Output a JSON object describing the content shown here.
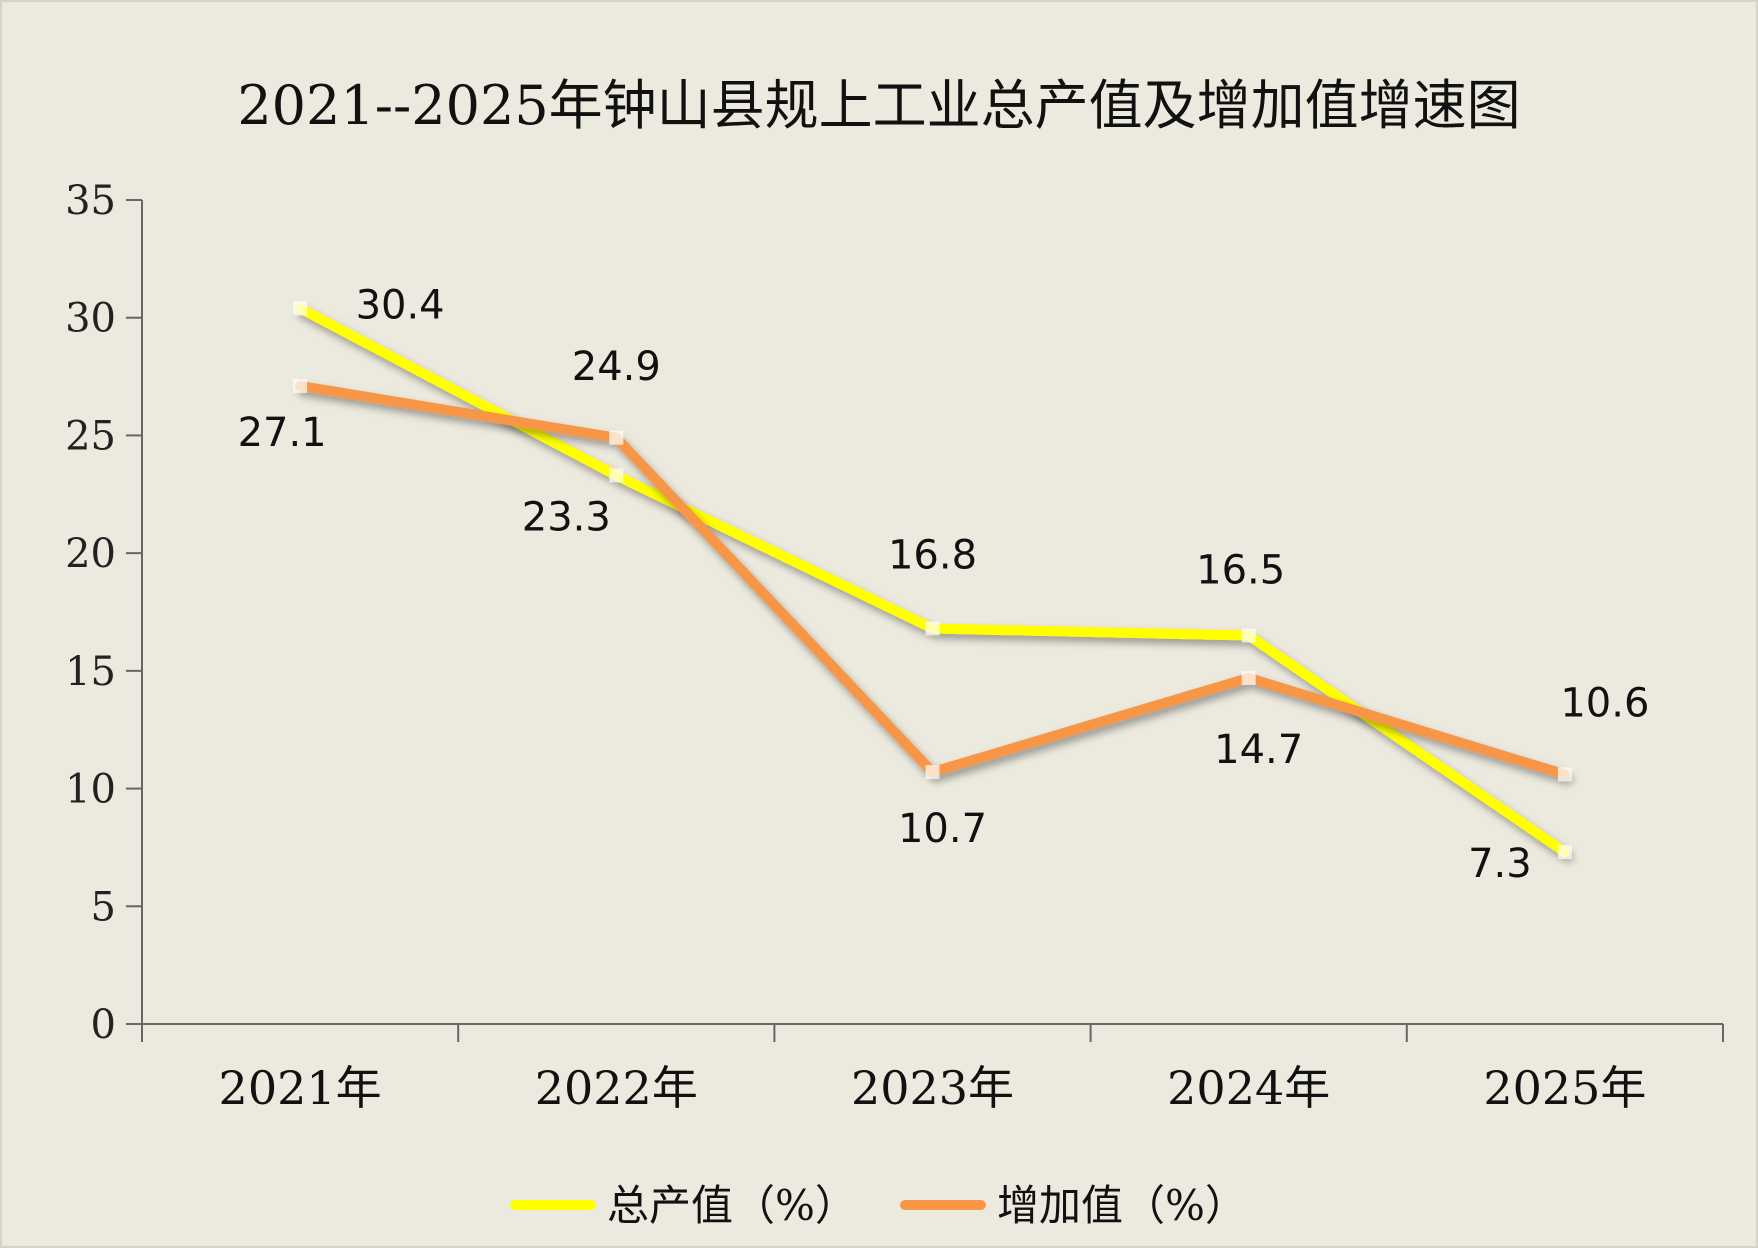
{
  "chart_data": {
    "type": "line",
    "title": "2021--2025年钟山县规上工业总产值及增加值增速图",
    "categories": [
      "2021年",
      "2022年",
      "2023年",
      "2024年",
      "2025年"
    ],
    "ylim": [
      0,
      35
    ],
    "yticks": [
      0,
      5,
      10,
      15,
      20,
      25,
      30,
      35
    ],
    "grid": false,
    "legend_position": "bottom",
    "series": [
      {
        "name": "总产值（%）",
        "color": "#FFFF00",
        "values": [
          30.4,
          23.3,
          16.8,
          16.5,
          7.3
        ],
        "data_labels": [
          "30.4",
          "23.3",
          "16.8",
          "16.5",
          "7.3"
        ]
      },
      {
        "name": "增加值（%）",
        "color": "#F79646",
        "values": [
          27.1,
          24.9,
          10.7,
          14.7,
          10.6
        ],
        "data_labels": [
          "27.1",
          "24.9",
          "10.7",
          "14.7",
          "10.6"
        ]
      }
    ],
    "background_color": "#ECE9DE"
  }
}
